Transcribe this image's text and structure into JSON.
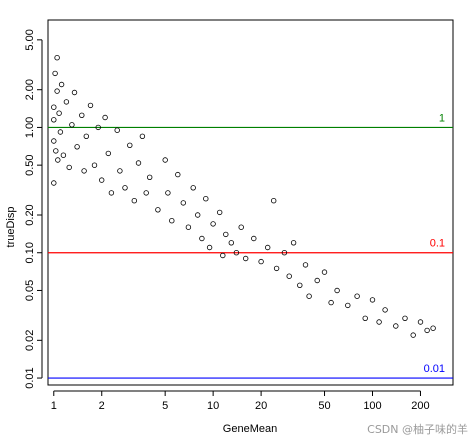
{
  "chart_data": {
    "type": "scatter",
    "title": "",
    "xlabel": "GeneMean",
    "ylabel": "trueDisp",
    "x_scale": "log",
    "y_scale": "log",
    "xlim": [
      0.92,
      320
    ],
    "ylim": [
      0.0088,
      7.2
    ],
    "x_ticks": [
      1,
      2,
      5,
      10,
      20,
      50,
      100,
      200
    ],
    "x_tick_labels": [
      "1",
      "2",
      "5",
      "10",
      "20",
      "50",
      "100",
      "200"
    ],
    "y_ticks": [
      0.01,
      0.02,
      0.05,
      0.1,
      0.2,
      0.5,
      1,
      2,
      5
    ],
    "y_tick_labels": [
      "0.01",
      "0.02",
      "0.05",
      "0.10",
      "0.20",
      "0.50",
      "1.00",
      "2.00",
      "5.00"
    ],
    "marker": "open circle",
    "reference_lines": [
      {
        "y": 1,
        "label": "1",
        "color": "#008000"
      },
      {
        "y": 0.1,
        "label": "0.1",
        "color": "#ff0000"
      },
      {
        "y": 0.01,
        "label": "0.01",
        "color": "#0000ff"
      }
    ],
    "series": [
      {
        "marker_color": "#000000",
        "approx_trend": "dispersion decreases roughly as 1/mean",
        "points": [
          [
            1.0,
            1.15
          ],
          [
            1.0,
            0.78
          ],
          [
            1.0,
            1.45
          ],
          [
            1.0,
            0.36
          ],
          [
            1.02,
            2.7
          ],
          [
            1.03,
            0.65
          ],
          [
            1.05,
            3.6
          ],
          [
            1.05,
            1.95
          ],
          [
            1.06,
            0.55
          ],
          [
            1.08,
            1.3
          ],
          [
            1.1,
            0.92
          ],
          [
            1.12,
            2.2
          ],
          [
            1.15,
            0.6
          ],
          [
            1.2,
            1.6
          ],
          [
            1.25,
            0.48
          ],
          [
            1.3,
            1.05
          ],
          [
            1.35,
            1.9
          ],
          [
            1.4,
            0.7
          ],
          [
            1.5,
            1.25
          ],
          [
            1.55,
            0.45
          ],
          [
            1.6,
            0.85
          ],
          [
            1.7,
            1.5
          ],
          [
            1.8,
            0.5
          ],
          [
            1.9,
            1.0
          ],
          [
            2.0,
            0.38
          ],
          [
            2.1,
            1.2
          ],
          [
            2.2,
            0.62
          ],
          [
            2.3,
            0.3
          ],
          [
            2.5,
            0.95
          ],
          [
            2.6,
            0.45
          ],
          [
            2.8,
            0.33
          ],
          [
            3.0,
            0.72
          ],
          [
            3.2,
            0.26
          ],
          [
            3.4,
            0.52
          ],
          [
            3.6,
            0.85
          ],
          [
            3.8,
            0.3
          ],
          [
            4.0,
            0.4
          ],
          [
            4.5,
            0.22
          ],
          [
            5.0,
            0.55
          ],
          [
            5.2,
            0.3
          ],
          [
            5.5,
            0.18
          ],
          [
            6.0,
            0.42
          ],
          [
            6.5,
            0.25
          ],
          [
            7.0,
            0.16
          ],
          [
            7.5,
            0.33
          ],
          [
            8.0,
            0.2
          ],
          [
            8.5,
            0.13
          ],
          [
            9.0,
            0.27
          ],
          [
            9.5,
            0.11
          ],
          [
            10,
            0.17
          ],
          [
            11,
            0.21
          ],
          [
            11.5,
            0.095
          ],
          [
            12,
            0.14
          ],
          [
            13,
            0.12
          ],
          [
            14,
            0.1
          ],
          [
            15,
            0.16
          ],
          [
            16,
            0.09
          ],
          [
            18,
            0.13
          ],
          [
            20,
            0.085
          ],
          [
            22,
            0.11
          ],
          [
            24,
            0.26
          ],
          [
            25,
            0.075
          ],
          [
            28,
            0.1
          ],
          [
            30,
            0.065
          ],
          [
            32,
            0.12
          ],
          [
            35,
            0.055
          ],
          [
            38,
            0.08
          ],
          [
            40,
            0.045
          ],
          [
            45,
            0.06
          ],
          [
            50,
            0.07
          ],
          [
            55,
            0.04
          ],
          [
            60,
            0.05
          ],
          [
            70,
            0.038
          ],
          [
            80,
            0.045
          ],
          [
            90,
            0.03
          ],
          [
            100,
            0.042
          ],
          [
            110,
            0.028
          ],
          [
            120,
            0.035
          ],
          [
            140,
            0.026
          ],
          [
            160,
            0.03
          ],
          [
            180,
            0.022
          ],
          [
            200,
            0.028
          ],
          [
            220,
            0.024
          ],
          [
            240,
            0.025
          ]
        ]
      }
    ]
  },
  "watermark": "CSDN @柚子味的羊"
}
